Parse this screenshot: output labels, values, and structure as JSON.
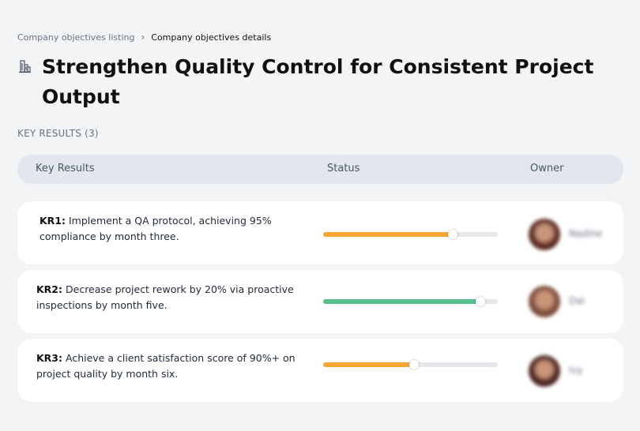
{
  "breadcrumb": {
    "parent": "Company objectives listing",
    "current": "Company objectives details"
  },
  "page": {
    "title": "Strengthen Quality Control for Consistent Project Output",
    "icon": "building-icon"
  },
  "key_results_count_label": "KEY RESULTS (3)",
  "table": {
    "headers": {
      "key_results": "Key Results",
      "status": "Status",
      "owner": "Owner"
    },
    "rows": [
      {
        "code": "KR1:",
        "text": "Implement a QA protocol, achieving 95% compliance by month three.",
        "progress": 0.74,
        "status_color": "#f8a532",
        "owner": "Nadine",
        "avatar_color": "#5a2a22"
      },
      {
        "code": "KR2:",
        "text": "Decrease project rework by 20% via proactive inspections by month five.",
        "progress": 0.9,
        "status_color": "#57c08a",
        "owner": "Dai",
        "avatar_color": "#7a4a3a"
      },
      {
        "code": "KR3:",
        "text": "Achieve a client satisfaction score of 90%+ on project quality by month six.",
        "progress": 0.52,
        "status_color": "#f8a532",
        "owner": "Ivy",
        "avatar_color": "#4a2420"
      }
    ]
  }
}
